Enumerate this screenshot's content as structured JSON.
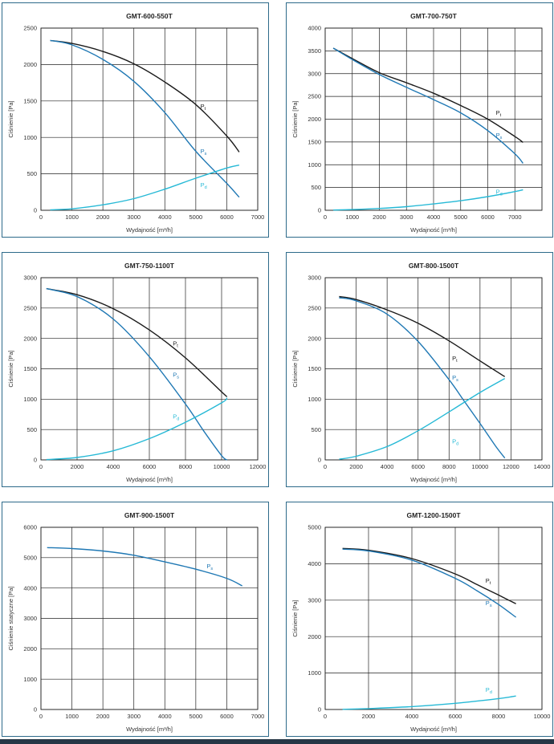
{
  "colors": {
    "total": "#1a1a1a",
    "static": "#1f78b4",
    "dynamic": "#26b9d6",
    "frame": "#2d6a8a",
    "grid": "#222222"
  },
  "chart_data": [
    {
      "type": "line",
      "title": "GMT-600-550T",
      "xlabel": "Wydajność [m³/h]",
      "ylabel": "Ciśnienie [Pa]",
      "xlim": [
        0,
        7000
      ],
      "ylim": [
        0,
        2500
      ],
      "xticks": [
        0,
        1000,
        2000,
        3000,
        4000,
        5000,
        6000,
        7000
      ],
      "yticks": [
        0,
        500,
        1000,
        1500,
        2000,
        2500
      ],
      "grid": true,
      "series": [
        {
          "name": "Pt",
          "color": "total",
          "x": [
            300,
            1000,
            2000,
            3000,
            4000,
            5000,
            6000,
            6400
          ],
          "y": [
            2330,
            2290,
            2180,
            2010,
            1760,
            1450,
            1020,
            800
          ]
        },
        {
          "name": "Ps",
          "color": "static",
          "x": [
            300,
            1000,
            2000,
            3000,
            4000,
            5000,
            6000,
            6400
          ],
          "y": [
            2330,
            2270,
            2070,
            1770,
            1340,
            810,
            370,
            180
          ]
        },
        {
          "name": "Pd",
          "color": "dynamic",
          "x": [
            300,
            1000,
            2000,
            3000,
            4000,
            5000,
            6000,
            6400
          ],
          "y": [
            5,
            20,
            75,
            160,
            290,
            440,
            580,
            620
          ]
        }
      ],
      "labels": [
        {
          "text": "Pt",
          "x": 5150,
          "y": 1400
        },
        {
          "text": "Ps",
          "x": 5150,
          "y": 780
        },
        {
          "text": "Pd",
          "x": 5150,
          "y": 320
        }
      ]
    },
    {
      "type": "line",
      "title": "GMT-700-750T",
      "xlabel": "Wydajność [m³/h]",
      "ylabel": "Ciśnienie [Pa]",
      "xlim": [
        0,
        8000
      ],
      "ylim": [
        0,
        4000
      ],
      "xticks": [
        0,
        1000,
        2000,
        3000,
        4000,
        5000,
        6000,
        7000
      ],
      "yticks": [
        0,
        500,
        1000,
        1500,
        2000,
        2500,
        3000,
        3500,
        4000
      ],
      "grid": true,
      "series": [
        {
          "name": "Pt",
          "color": "total",
          "x": [
            300,
            1000,
            2000,
            3000,
            4000,
            5000,
            6000,
            7000,
            7300
          ],
          "y": [
            3560,
            3330,
            3020,
            2800,
            2570,
            2300,
            2000,
            1620,
            1490
          ]
        },
        {
          "name": "Ps",
          "color": "static",
          "x": [
            300,
            1000,
            2000,
            3000,
            4000,
            5000,
            6000,
            7000,
            7300
          ],
          "y": [
            3560,
            3310,
            2980,
            2700,
            2430,
            2140,
            1750,
            1240,
            1030
          ]
        },
        {
          "name": "Pd",
          "color": "dynamic",
          "x": [
            300,
            1000,
            2000,
            3000,
            4000,
            5000,
            6000,
            7000,
            7300
          ],
          "y": [
            5,
            15,
            40,
            80,
            140,
            210,
            300,
            410,
            450
          ]
        }
      ],
      "labels": [
        {
          "text": "Pt",
          "x": 6300,
          "y": 2100
        },
        {
          "text": "Ps",
          "x": 6300,
          "y": 1600
        },
        {
          "text": "Pd",
          "x": 6300,
          "y": 360
        }
      ]
    },
    {
      "type": "line",
      "title": "GMT-750-1100T",
      "xlabel": "Wydajność [m³/h]",
      "ylabel": "Ciśnienie [Pa]",
      "xlim": [
        0,
        12000
      ],
      "ylim": [
        0,
        3000
      ],
      "xticks": [
        0,
        2000,
        4000,
        6000,
        8000,
        10000,
        12000
      ],
      "yticks": [
        0,
        500,
        1000,
        1500,
        2000,
        2500,
        3000
      ],
      "grid": true,
      "series": [
        {
          "name": "Pt",
          "color": "total",
          "x": [
            300,
            2000,
            4000,
            6000,
            8000,
            10000,
            10300
          ],
          "y": [
            2820,
            2720,
            2490,
            2140,
            1680,
            1120,
            1040
          ]
        },
        {
          "name": "Ps",
          "color": "static",
          "x": [
            300,
            2000,
            4000,
            6000,
            8000,
            9000,
            10000,
            10300
          ],
          "y": [
            2820,
            2690,
            2320,
            1700,
            920,
            480,
            70,
            0
          ]
        },
        {
          "name": "Pd",
          "color": "dynamic",
          "x": [
            300,
            2000,
            4000,
            6000,
            8000,
            10000,
            10300
          ],
          "y": [
            5,
            40,
            150,
            350,
            620,
            940,
            1020
          ]
        }
      ],
      "labels": [
        {
          "text": "Pt",
          "x": 7300,
          "y": 1880
        },
        {
          "text": "Ps",
          "x": 7300,
          "y": 1370
        },
        {
          "text": "Pd",
          "x": 7300,
          "y": 680
        }
      ]
    },
    {
      "type": "line",
      "title": "GMT-800-1500T",
      "xlabel": "Wydajność [m³/h]",
      "ylabel": "Ciśnienie [Pa]",
      "xlim": [
        0,
        14000
      ],
      "ylim": [
        0,
        3000
      ],
      "xticks": [
        0,
        2000,
        4000,
        6000,
        8000,
        10000,
        12000,
        14000
      ],
      "yticks": [
        0,
        500,
        1000,
        1500,
        2000,
        2500,
        3000
      ],
      "grid": true,
      "series": [
        {
          "name": "Pt",
          "color": "total",
          "x": [
            900,
            2000,
            4000,
            6000,
            8000,
            10000,
            11600
          ],
          "y": [
            2690,
            2640,
            2470,
            2250,
            1960,
            1630,
            1370
          ]
        },
        {
          "name": "Ps",
          "color": "static",
          "x": [
            900,
            2000,
            4000,
            6000,
            8000,
            9000,
            10000,
            11000,
            11600
          ],
          "y": [
            2670,
            2620,
            2400,
            1950,
            1320,
            960,
            600,
            230,
            30
          ]
        },
        {
          "name": "Pd",
          "color": "dynamic",
          "x": [
            900,
            2000,
            4000,
            6000,
            8000,
            10000,
            11600
          ],
          "y": [
            10,
            60,
            220,
            480,
            790,
            1110,
            1340
          ]
        }
      ],
      "labels": [
        {
          "text": "Pt",
          "x": 8200,
          "y": 1640
        },
        {
          "text": "Ps",
          "x": 8200,
          "y": 1320
        },
        {
          "text": "Pd",
          "x": 8200,
          "y": 270
        }
      ]
    },
    {
      "type": "line",
      "title": "GMT-900-1500T",
      "xlabel": "Wydajność [m³/h]",
      "ylabel": "Ciśnienie statyczne [Pa]",
      "xlim": [
        0,
        7000
      ],
      "ylim": [
        0,
        6000
      ],
      "xticks": [
        0,
        1000,
        2000,
        3000,
        4000,
        5000,
        6000,
        7000
      ],
      "yticks": [
        0,
        1000,
        2000,
        3000,
        4000,
        5000,
        6000
      ],
      "grid": true,
      "series": [
        {
          "name": "Ps",
          "color": "static",
          "x": [
            200,
            1000,
            2000,
            3000,
            4000,
            5000,
            6000,
            6500
          ],
          "y": [
            5330,
            5300,
            5220,
            5080,
            4860,
            4620,
            4320,
            4070
          ]
        }
      ],
      "labels": [
        {
          "text": "Ps",
          "x": 5350,
          "y": 4650
        }
      ]
    },
    {
      "type": "line",
      "title": "GMT-1200-1500T",
      "xlabel": "Wydajność [m³/h]",
      "ylabel": "Ciśnienie [Pa]",
      "xlim": [
        0,
        10000
      ],
      "ylim": [
        0,
        5000
      ],
      "xticks": [
        0,
        2000,
        4000,
        6000,
        8000,
        10000
      ],
      "yticks": [
        0,
        1000,
        2000,
        3000,
        4000,
        5000
      ],
      "grid": true,
      "series": [
        {
          "name": "Pt",
          "color": "total",
          "x": [
            800,
            2000,
            4000,
            6000,
            7000,
            8000,
            8800
          ],
          "y": [
            4420,
            4370,
            4140,
            3720,
            3430,
            3140,
            2900
          ]
        },
        {
          "name": "Ps",
          "color": "static",
          "x": [
            800,
            2000,
            4000,
            6000,
            7000,
            8000,
            8800
          ],
          "y": [
            4400,
            4350,
            4100,
            3600,
            3260,
            2880,
            2530
          ]
        },
        {
          "name": "Pd",
          "color": "dynamic",
          "x": [
            800,
            2000,
            4000,
            6000,
            8000,
            8800
          ],
          "y": [
            5,
            25,
            80,
            170,
            300,
            370
          ]
        }
      ],
      "labels": [
        {
          "text": "Pt",
          "x": 7400,
          "y": 3480
        },
        {
          "text": "Ps",
          "x": 7400,
          "y": 2860
        },
        {
          "text": "Pd",
          "x": 7400,
          "y": 480
        }
      ]
    }
  ]
}
